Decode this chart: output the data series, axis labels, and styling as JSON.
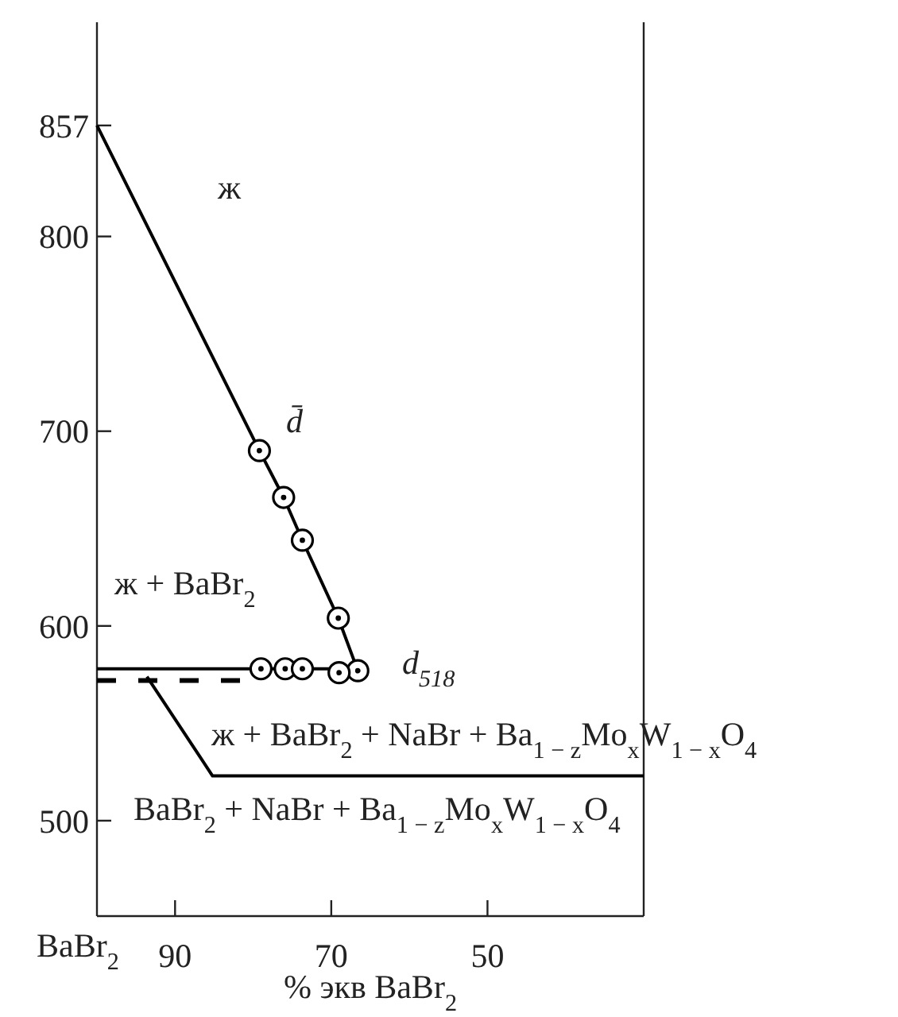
{
  "chart_data": {
    "type": "line",
    "xlabel": "% экв BaBr$_{2}$",
    "xlim": [
      100,
      30
    ],
    "xticks": [
      90,
      70,
      50
    ],
    "ylim": [
      451,
      910
    ],
    "yticks": [
      500,
      600,
      700,
      800,
      857
    ],
    "grid": false,
    "series": [
      {
        "type": "line",
        "color": "#000000",
        "line_style": "solid",
        "x": [
          100,
          79.2,
          76.1,
          73.7,
          69.1,
          66.6
        ],
        "values": [
          857,
          690,
          666,
          644,
          604,
          577
        ]
      },
      {
        "type": "line",
        "color": "#000000",
        "line_style": "solid",
        "x": [
          100,
          66.6
        ],
        "values": [
          578,
          578
        ]
      },
      {
        "type": "line",
        "color": "#000000",
        "line_style": "dashed",
        "x": [
          100,
          79.7
        ],
        "values": [
          572,
          572
        ]
      },
      {
        "type": "line",
        "color": "#000000",
        "line_style": "solid",
        "x": [
          93.6,
          85.2,
          30
        ],
        "values": [
          574,
          523,
          523
        ]
      },
      {
        "type": "scatter",
        "color": "#000000",
        "marker": "circle",
        "x": [
          79.2,
          76.1,
          73.7,
          69.1,
          66.6,
          79.0,
          75.9,
          73.7,
          69.0
        ],
        "values": [
          690,
          666,
          644,
          604,
          577,
          578,
          578,
          578,
          576
        ]
      }
    ],
    "annotations": [
      "ж",
      "d̄",
      "ж + BaBr$_{2}$",
      "d$_{518}$",
      "ж + BaBr$_{2}$ + NaBr + Ba$_{1 − z}$Mo$_{x}$W$_{1 − x}$O$_{4}$",
      "BaBr$_{2}$ + NaBr + Ba$_{1 − z}$Mo$_{x}$W$_{1 − x}$O$_{4}$",
      "BaBr$_{2}$"
    ]
  }
}
